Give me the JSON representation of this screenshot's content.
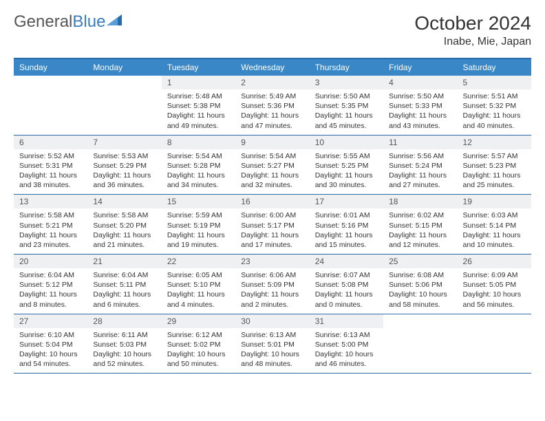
{
  "logo": {
    "part1": "General",
    "part2": "Blue"
  },
  "title": "October 2024",
  "location": "Inabe, Mie, Japan",
  "day_headers": [
    "Sunday",
    "Monday",
    "Tuesday",
    "Wednesday",
    "Thursday",
    "Friday",
    "Saturday"
  ],
  "colors": {
    "header_bg": "#3a87c7",
    "header_text": "#ffffff",
    "border": "#2b6aa8",
    "daynum_bg": "#eef0f2",
    "body_text": "#333333",
    "logo_gray": "#555555",
    "logo_blue": "#3a7cc2"
  },
  "weeks": [
    [
      {
        "n": "",
        "sr": "",
        "ss": "",
        "dl": ""
      },
      {
        "n": "",
        "sr": "",
        "ss": "",
        "dl": ""
      },
      {
        "n": "1",
        "sr": "Sunrise: 5:48 AM",
        "ss": "Sunset: 5:38 PM",
        "dl": "Daylight: 11 hours and 49 minutes."
      },
      {
        "n": "2",
        "sr": "Sunrise: 5:49 AM",
        "ss": "Sunset: 5:36 PM",
        "dl": "Daylight: 11 hours and 47 minutes."
      },
      {
        "n": "3",
        "sr": "Sunrise: 5:50 AM",
        "ss": "Sunset: 5:35 PM",
        "dl": "Daylight: 11 hours and 45 minutes."
      },
      {
        "n": "4",
        "sr": "Sunrise: 5:50 AM",
        "ss": "Sunset: 5:33 PM",
        "dl": "Daylight: 11 hours and 43 minutes."
      },
      {
        "n": "5",
        "sr": "Sunrise: 5:51 AM",
        "ss": "Sunset: 5:32 PM",
        "dl": "Daylight: 11 hours and 40 minutes."
      }
    ],
    [
      {
        "n": "6",
        "sr": "Sunrise: 5:52 AM",
        "ss": "Sunset: 5:31 PM",
        "dl": "Daylight: 11 hours and 38 minutes."
      },
      {
        "n": "7",
        "sr": "Sunrise: 5:53 AM",
        "ss": "Sunset: 5:29 PM",
        "dl": "Daylight: 11 hours and 36 minutes."
      },
      {
        "n": "8",
        "sr": "Sunrise: 5:54 AM",
        "ss": "Sunset: 5:28 PM",
        "dl": "Daylight: 11 hours and 34 minutes."
      },
      {
        "n": "9",
        "sr": "Sunrise: 5:54 AM",
        "ss": "Sunset: 5:27 PM",
        "dl": "Daylight: 11 hours and 32 minutes."
      },
      {
        "n": "10",
        "sr": "Sunrise: 5:55 AM",
        "ss": "Sunset: 5:25 PM",
        "dl": "Daylight: 11 hours and 30 minutes."
      },
      {
        "n": "11",
        "sr": "Sunrise: 5:56 AM",
        "ss": "Sunset: 5:24 PM",
        "dl": "Daylight: 11 hours and 27 minutes."
      },
      {
        "n": "12",
        "sr": "Sunrise: 5:57 AM",
        "ss": "Sunset: 5:23 PM",
        "dl": "Daylight: 11 hours and 25 minutes."
      }
    ],
    [
      {
        "n": "13",
        "sr": "Sunrise: 5:58 AM",
        "ss": "Sunset: 5:21 PM",
        "dl": "Daylight: 11 hours and 23 minutes."
      },
      {
        "n": "14",
        "sr": "Sunrise: 5:58 AM",
        "ss": "Sunset: 5:20 PM",
        "dl": "Daylight: 11 hours and 21 minutes."
      },
      {
        "n": "15",
        "sr": "Sunrise: 5:59 AM",
        "ss": "Sunset: 5:19 PM",
        "dl": "Daylight: 11 hours and 19 minutes."
      },
      {
        "n": "16",
        "sr": "Sunrise: 6:00 AM",
        "ss": "Sunset: 5:17 PM",
        "dl": "Daylight: 11 hours and 17 minutes."
      },
      {
        "n": "17",
        "sr": "Sunrise: 6:01 AM",
        "ss": "Sunset: 5:16 PM",
        "dl": "Daylight: 11 hours and 15 minutes."
      },
      {
        "n": "18",
        "sr": "Sunrise: 6:02 AM",
        "ss": "Sunset: 5:15 PM",
        "dl": "Daylight: 11 hours and 12 minutes."
      },
      {
        "n": "19",
        "sr": "Sunrise: 6:03 AM",
        "ss": "Sunset: 5:14 PM",
        "dl": "Daylight: 11 hours and 10 minutes."
      }
    ],
    [
      {
        "n": "20",
        "sr": "Sunrise: 6:04 AM",
        "ss": "Sunset: 5:12 PM",
        "dl": "Daylight: 11 hours and 8 minutes."
      },
      {
        "n": "21",
        "sr": "Sunrise: 6:04 AM",
        "ss": "Sunset: 5:11 PM",
        "dl": "Daylight: 11 hours and 6 minutes."
      },
      {
        "n": "22",
        "sr": "Sunrise: 6:05 AM",
        "ss": "Sunset: 5:10 PM",
        "dl": "Daylight: 11 hours and 4 minutes."
      },
      {
        "n": "23",
        "sr": "Sunrise: 6:06 AM",
        "ss": "Sunset: 5:09 PM",
        "dl": "Daylight: 11 hours and 2 minutes."
      },
      {
        "n": "24",
        "sr": "Sunrise: 6:07 AM",
        "ss": "Sunset: 5:08 PM",
        "dl": "Daylight: 11 hours and 0 minutes."
      },
      {
        "n": "25",
        "sr": "Sunrise: 6:08 AM",
        "ss": "Sunset: 5:06 PM",
        "dl": "Daylight: 10 hours and 58 minutes."
      },
      {
        "n": "26",
        "sr": "Sunrise: 6:09 AM",
        "ss": "Sunset: 5:05 PM",
        "dl": "Daylight: 10 hours and 56 minutes."
      }
    ],
    [
      {
        "n": "27",
        "sr": "Sunrise: 6:10 AM",
        "ss": "Sunset: 5:04 PM",
        "dl": "Daylight: 10 hours and 54 minutes."
      },
      {
        "n": "28",
        "sr": "Sunrise: 6:11 AM",
        "ss": "Sunset: 5:03 PM",
        "dl": "Daylight: 10 hours and 52 minutes."
      },
      {
        "n": "29",
        "sr": "Sunrise: 6:12 AM",
        "ss": "Sunset: 5:02 PM",
        "dl": "Daylight: 10 hours and 50 minutes."
      },
      {
        "n": "30",
        "sr": "Sunrise: 6:13 AM",
        "ss": "Sunset: 5:01 PM",
        "dl": "Daylight: 10 hours and 48 minutes."
      },
      {
        "n": "31",
        "sr": "Sunrise: 6:13 AM",
        "ss": "Sunset: 5:00 PM",
        "dl": "Daylight: 10 hours and 46 minutes."
      },
      {
        "n": "",
        "sr": "",
        "ss": "",
        "dl": ""
      },
      {
        "n": "",
        "sr": "",
        "ss": "",
        "dl": ""
      }
    ]
  ]
}
